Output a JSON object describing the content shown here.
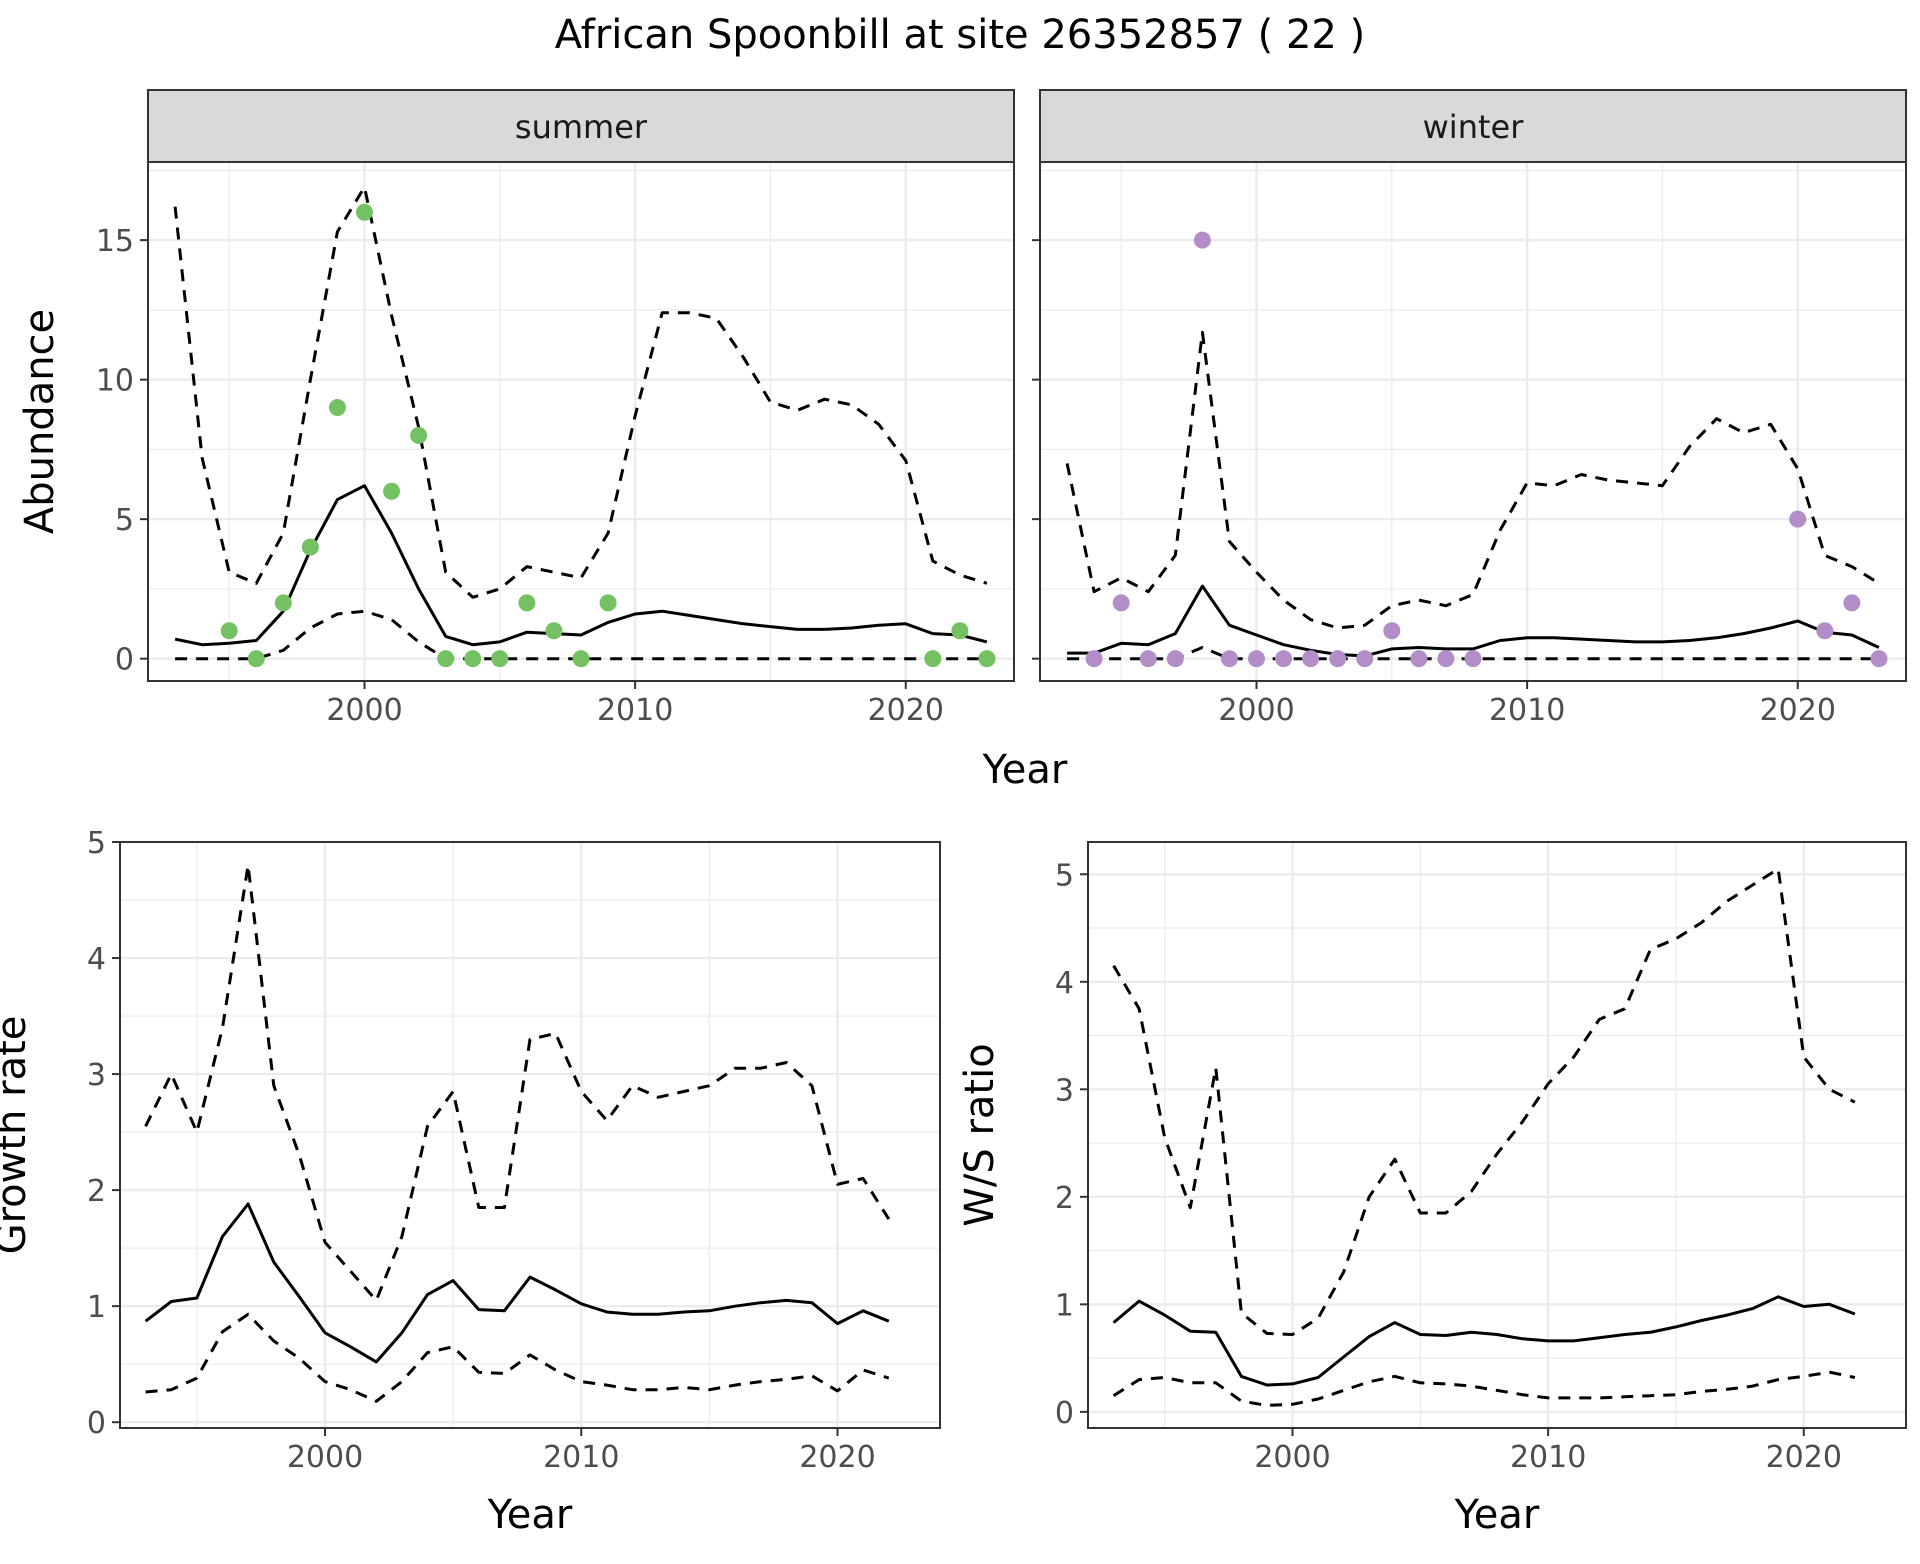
{
  "figure": {
    "title": "African Spoonbill at site 26352857 ( 22 )"
  },
  "chart_data": [
    {
      "id": "abundance-summer",
      "type": "line",
      "strip_label": "summer",
      "title": "",
      "xlabel": "",
      "ylabel": "Abundance",
      "xlim": [
        1992,
        2024
      ],
      "ylim": [
        -0.8,
        17.8
      ],
      "x_ticks": [
        2000,
        2010,
        2020
      ],
      "y_ticks": [
        0,
        5,
        10,
        15
      ],
      "point_color": "#73c162",
      "series": [
        {
          "role": "upper",
          "style": "dashed",
          "x": [
            1993,
            1994,
            1995,
            1996,
            1997,
            1998,
            1999,
            2000,
            2001,
            2002,
            2003,
            2004,
            2005,
            2006,
            2007,
            2008,
            2009,
            2010,
            2011,
            2012,
            2013,
            2014,
            2015,
            2016,
            2017,
            2018,
            2019,
            2020,
            2021,
            2022,
            2023
          ],
          "y": [
            16.2,
            7.2,
            3.1,
            2.7,
            4.5,
            10.0,
            15.3,
            16.9,
            12.3,
            8.3,
            3.1,
            2.2,
            2.5,
            3.3,
            3.1,
            2.9,
            4.5,
            8.7,
            12.4,
            12.4,
            12.2,
            10.8,
            9.2,
            8.9,
            9.3,
            9.1,
            8.4,
            7.1,
            3.5,
            3.0,
            2.7
          ]
        },
        {
          "role": "median",
          "style": "solid",
          "x": [
            1993,
            1994,
            1995,
            1996,
            1997,
            1998,
            1999,
            2000,
            2001,
            2002,
            2003,
            2004,
            2005,
            2006,
            2007,
            2008,
            2009,
            2010,
            2011,
            2012,
            2013,
            2014,
            2015,
            2016,
            2017,
            2018,
            2019,
            2020,
            2021,
            2022,
            2023
          ],
          "y": [
            0.7,
            0.5,
            0.55,
            0.65,
            1.7,
            3.9,
            5.7,
            6.2,
            4.5,
            2.5,
            0.8,
            0.5,
            0.6,
            0.95,
            0.9,
            0.85,
            1.3,
            1.6,
            1.7,
            1.55,
            1.4,
            1.25,
            1.15,
            1.05,
            1.05,
            1.1,
            1.2,
            1.25,
            0.9,
            0.85,
            0.6
          ]
        },
        {
          "role": "lower",
          "style": "dashed",
          "x": [
            1993,
            1994,
            1995,
            1996,
            1997,
            1998,
            1999,
            2000,
            2001,
            2002,
            2003,
            2004,
            2005,
            2006,
            2007,
            2008,
            2009,
            2010,
            2011,
            2012,
            2013,
            2014,
            2015,
            2016,
            2017,
            2018,
            2019,
            2020,
            2021,
            2022,
            2023
          ],
          "y": [
            0,
            0,
            0,
            0,
            0.3,
            1.1,
            1.6,
            1.7,
            1.4,
            0.6,
            0,
            0,
            0,
            0,
            0,
            0,
            0,
            0,
            0,
            0,
            0,
            0,
            0,
            0,
            0,
            0,
            0,
            0,
            0,
            0,
            0
          ]
        }
      ],
      "points": {
        "x": [
          1995,
          1996,
          1997,
          1998,
          1999,
          2000,
          2001,
          2002,
          2003,
          2004,
          2005,
          2006,
          2007,
          2008,
          2009,
          2021,
          2022,
          2023
        ],
        "y": [
          1,
          0,
          2,
          4,
          9,
          16,
          6,
          8,
          0,
          0,
          0,
          2,
          1,
          0,
          2,
          0,
          1,
          0
        ]
      }
    },
    {
      "id": "abundance-winter",
      "type": "line",
      "strip_label": "winter",
      "title": "",
      "xlabel": "",
      "ylabel": "",
      "xlim": [
        1992,
        2024
      ],
      "ylim": [
        -0.8,
        17.8
      ],
      "x_ticks": [
        2000,
        2010,
        2020
      ],
      "y_ticks": [
        0,
        5,
        10,
        15
      ],
      "point_color": "#b38dc7",
      "series": [
        {
          "role": "upper",
          "style": "dashed",
          "x": [
            1993,
            1994,
            1995,
            1996,
            1997,
            1998,
            1999,
            2000,
            2001,
            2002,
            2003,
            2004,
            2005,
            2006,
            2007,
            2008,
            2009,
            2010,
            2011,
            2012,
            2013,
            2014,
            2015,
            2016,
            2017,
            2018,
            2019,
            2020,
            2021,
            2022,
            2023
          ],
          "y": [
            7.0,
            2.4,
            2.9,
            2.4,
            3.7,
            11.7,
            4.2,
            3.1,
            2.1,
            1.4,
            1.1,
            1.2,
            1.9,
            2.1,
            1.9,
            2.3,
            4.6,
            6.3,
            6.2,
            6.6,
            6.4,
            6.3,
            6.2,
            7.6,
            8.6,
            8.1,
            8.4,
            6.8,
            3.7,
            3.3,
            2.7
          ]
        },
        {
          "role": "median",
          "style": "solid",
          "x": [
            1993,
            1994,
            1995,
            1996,
            1997,
            1998,
            1999,
            2000,
            2001,
            2002,
            2003,
            2004,
            2005,
            2006,
            2007,
            2008,
            2009,
            2010,
            2011,
            2012,
            2013,
            2014,
            2015,
            2016,
            2017,
            2018,
            2019,
            2020,
            2021,
            2022,
            2023
          ],
          "y": [
            0.2,
            0.2,
            0.55,
            0.5,
            0.9,
            2.6,
            1.2,
            0.85,
            0.5,
            0.3,
            0.15,
            0.1,
            0.35,
            0.4,
            0.35,
            0.35,
            0.65,
            0.75,
            0.75,
            0.7,
            0.65,
            0.6,
            0.6,
            0.65,
            0.75,
            0.9,
            1.1,
            1.35,
            0.95,
            0.85,
            0.4
          ]
        },
        {
          "role": "lower",
          "style": "dashed",
          "x": [
            1993,
            1994,
            1995,
            1996,
            1997,
            1998,
            1999,
            2000,
            2001,
            2002,
            2003,
            2004,
            2005,
            2006,
            2007,
            2008,
            2009,
            2010,
            2011,
            2012,
            2013,
            2014,
            2015,
            2016,
            2017,
            2018,
            2019,
            2020,
            2021,
            2022,
            2023
          ],
          "y": [
            0,
            0,
            0,
            0,
            0,
            0.4,
            0,
            0,
            0,
            0,
            0,
            0,
            0,
            0,
            0,
            0,
            0,
            0,
            0,
            0,
            0,
            0,
            0,
            0,
            0,
            0,
            0,
            0,
            0,
            0,
            0
          ]
        }
      ],
      "points": {
        "x": [
          1994,
          1995,
          1996,
          1997,
          1998,
          1999,
          2000,
          2001,
          2002,
          2003,
          2004,
          2005,
          2006,
          2007,
          2008,
          2020,
          2021,
          2022,
          2023
        ],
        "y": [
          0,
          2,
          0,
          0,
          15,
          0,
          0,
          0,
          0,
          0,
          0,
          1,
          0,
          0,
          0,
          5,
          1,
          2,
          0
        ]
      }
    },
    {
      "id": "growth-rate",
      "type": "line",
      "title": "",
      "xlabel": "Year",
      "ylabel": "Growth rate",
      "xlim": [
        1992,
        2024
      ],
      "ylim": [
        -0.05,
        5.0
      ],
      "x_ticks": [
        2000,
        2010,
        2020
      ],
      "y_ticks": [
        0,
        1,
        2,
        3,
        4,
        5
      ],
      "series": [
        {
          "role": "upper",
          "style": "dashed",
          "x": [
            1993,
            1994,
            1995,
            1996,
            1997,
            1998,
            1999,
            2000,
            2001,
            2002,
            2003,
            2004,
            2005,
            2006,
            2007,
            2008,
            2009,
            2010,
            2011,
            2012,
            2013,
            2014,
            2015,
            2016,
            2017,
            2018,
            2019,
            2020,
            2021,
            2022
          ],
          "y": [
            2.55,
            3.0,
            2.5,
            3.4,
            4.8,
            2.9,
            2.3,
            1.55,
            1.3,
            1.05,
            1.6,
            2.55,
            2.85,
            1.85,
            1.85,
            3.3,
            3.35,
            2.85,
            2.6,
            2.9,
            2.8,
            2.85,
            2.9,
            3.05,
            3.05,
            3.1,
            2.9,
            2.05,
            2.1,
            1.75
          ]
        },
        {
          "role": "median",
          "style": "solid",
          "x": [
            1993,
            1994,
            1995,
            1996,
            1997,
            1998,
            1999,
            2000,
            2001,
            2002,
            2003,
            2004,
            2005,
            2006,
            2007,
            2008,
            2009,
            2010,
            2011,
            2012,
            2013,
            2014,
            2015,
            2016,
            2017,
            2018,
            2019,
            2020,
            2021,
            2022
          ],
          "y": [
            0.87,
            1.04,
            1.07,
            1.6,
            1.88,
            1.38,
            1.08,
            0.77,
            0.65,
            0.52,
            0.77,
            1.1,
            1.22,
            0.97,
            0.96,
            1.25,
            1.14,
            1.02,
            0.95,
            0.93,
            0.93,
            0.95,
            0.96,
            1.0,
            1.03,
            1.05,
            1.03,
            0.85,
            0.96,
            0.87
          ]
        },
        {
          "role": "lower",
          "style": "dashed",
          "x": [
            1993,
            1994,
            1995,
            1996,
            1997,
            1998,
            1999,
            2000,
            2001,
            2002,
            2003,
            2004,
            2005,
            2006,
            2007,
            2008,
            2009,
            2010,
            2011,
            2012,
            2013,
            2014,
            2015,
            2016,
            2017,
            2018,
            2019,
            2020,
            2021,
            2022
          ],
          "y": [
            0.26,
            0.28,
            0.38,
            0.78,
            0.93,
            0.7,
            0.55,
            0.35,
            0.28,
            0.18,
            0.35,
            0.6,
            0.65,
            0.43,
            0.42,
            0.58,
            0.45,
            0.35,
            0.32,
            0.28,
            0.28,
            0.3,
            0.28,
            0.32,
            0.35,
            0.37,
            0.4,
            0.27,
            0.45,
            0.38
          ]
        }
      ]
    },
    {
      "id": "ws-ratio",
      "type": "line",
      "title": "",
      "xlabel": "Year",
      "ylabel": "W/S ratio",
      "xlim": [
        1992,
        2024
      ],
      "ylim": [
        -0.15,
        5.3
      ],
      "x_ticks": [
        2000,
        2010,
        2020
      ],
      "y_ticks": [
        0,
        1,
        2,
        3,
        4,
        5
      ],
      "series": [
        {
          "role": "upper",
          "style": "dashed",
          "x": [
            1993,
            1994,
            1995,
            1996,
            1997,
            1998,
            1999,
            2000,
            2001,
            2002,
            2003,
            2004,
            2005,
            2006,
            2007,
            2008,
            2009,
            2010,
            2011,
            2012,
            2013,
            2014,
            2015,
            2016,
            2017,
            2018,
            2019,
            2020,
            2021,
            2022
          ],
          "y": [
            4.15,
            3.75,
            2.55,
            1.9,
            3.2,
            0.92,
            0.73,
            0.72,
            0.87,
            1.3,
            2.0,
            2.35,
            1.85,
            1.85,
            2.05,
            2.4,
            2.7,
            3.05,
            3.3,
            3.65,
            3.75,
            4.3,
            4.4,
            4.55,
            4.75,
            4.9,
            5.05,
            3.3,
            3.0,
            2.88
          ]
        },
        {
          "role": "median",
          "style": "solid",
          "x": [
            1993,
            1994,
            1995,
            1996,
            1997,
            1998,
            1999,
            2000,
            2001,
            2002,
            2003,
            2004,
            2005,
            2006,
            2007,
            2008,
            2009,
            2010,
            2011,
            2012,
            2013,
            2014,
            2015,
            2016,
            2017,
            2018,
            2019,
            2020,
            2021,
            2022
          ],
          "y": [
            0.83,
            1.03,
            0.9,
            0.75,
            0.74,
            0.33,
            0.25,
            0.26,
            0.32,
            0.51,
            0.7,
            0.83,
            0.72,
            0.71,
            0.74,
            0.72,
            0.68,
            0.66,
            0.66,
            0.69,
            0.72,
            0.74,
            0.79,
            0.85,
            0.9,
            0.96,
            1.07,
            0.98,
            1.0,
            0.91
          ]
        },
        {
          "role": "lower",
          "style": "dashed",
          "x": [
            1993,
            1994,
            1995,
            1996,
            1997,
            1998,
            1999,
            2000,
            2001,
            2002,
            2003,
            2004,
            2005,
            2006,
            2007,
            2008,
            2009,
            2010,
            2011,
            2012,
            2013,
            2014,
            2015,
            2016,
            2017,
            2018,
            2019,
            2020,
            2021,
            2022
          ],
          "y": [
            0.15,
            0.3,
            0.32,
            0.27,
            0.27,
            0.1,
            0.06,
            0.07,
            0.12,
            0.2,
            0.28,
            0.33,
            0.27,
            0.26,
            0.24,
            0.2,
            0.16,
            0.13,
            0.13,
            0.13,
            0.14,
            0.15,
            0.16,
            0.19,
            0.21,
            0.24,
            0.3,
            0.33,
            0.37,
            0.32
          ]
        }
      ]
    }
  ],
  "shared": {
    "abundance_xlabel": "Year",
    "gridline_color": "#ebebeb",
    "axis_text_color": "#4d4d4d",
    "strip_fill": "#d9d9d9",
    "line_color": "#000000"
  }
}
